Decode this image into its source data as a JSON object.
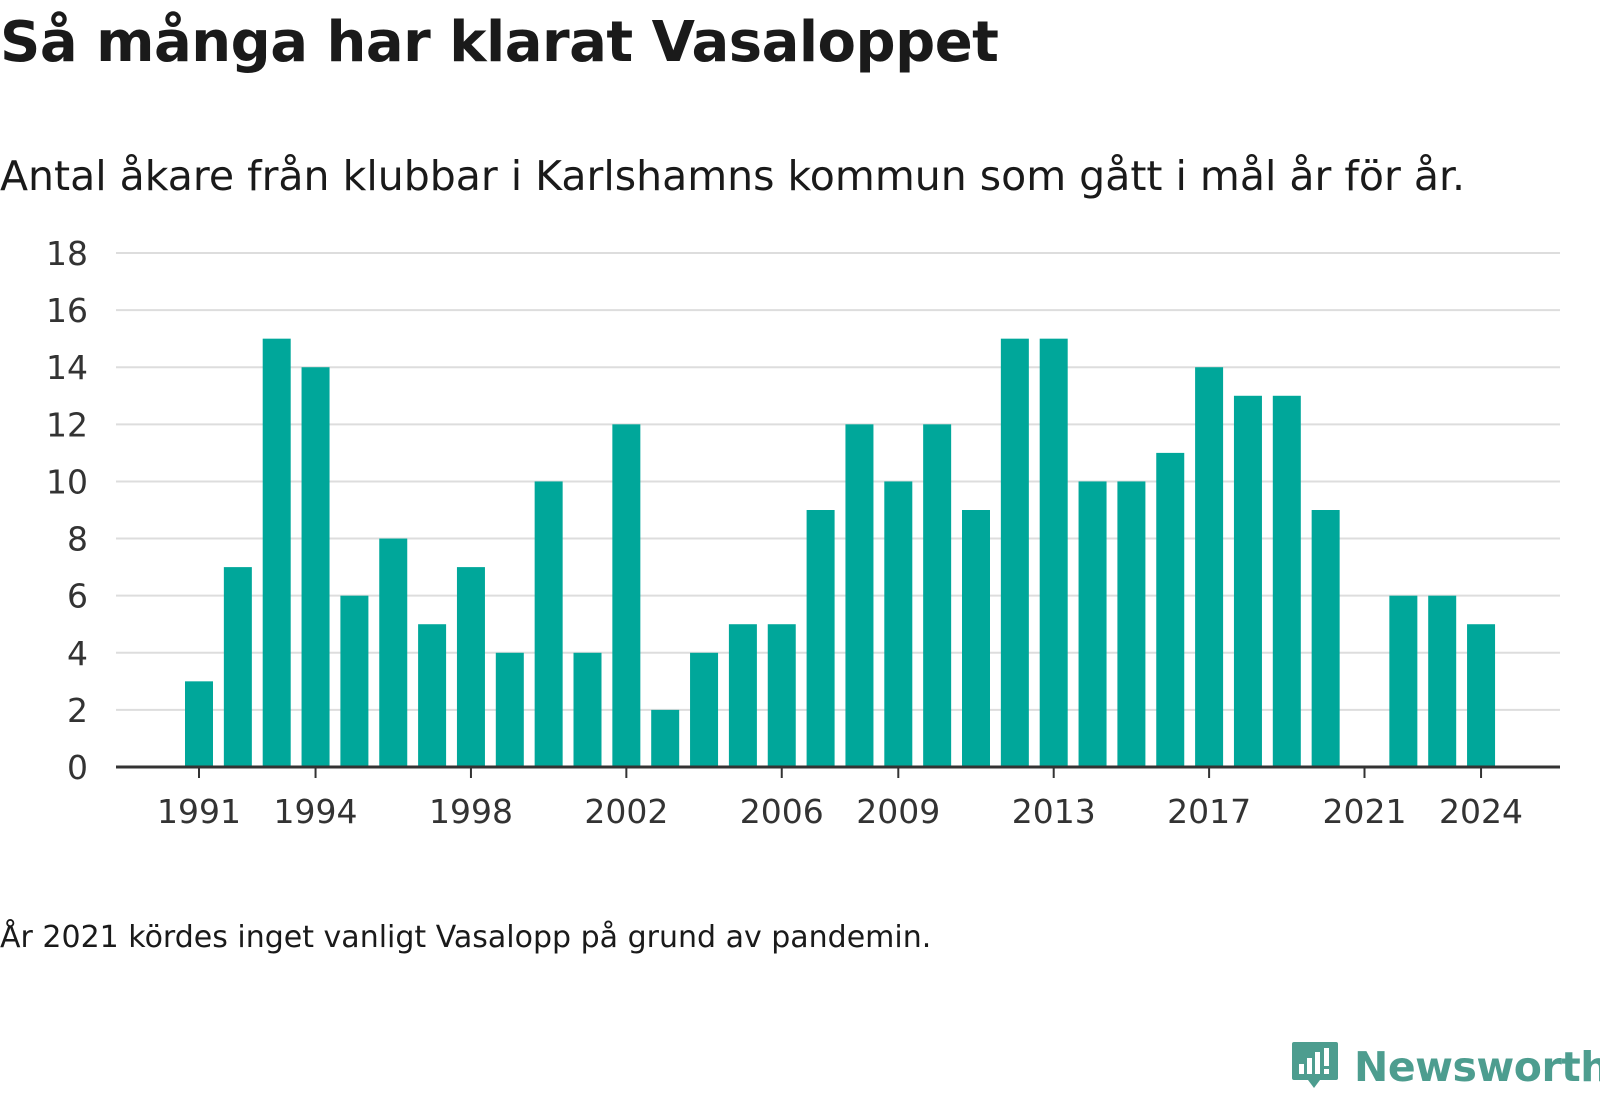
{
  "title": "Så många har klarat Vasaloppet",
  "subtitle": "Antal åkare från klubbar i Karlshamns kommun som gått i mål år för år.",
  "note": "År 2021 kördes inget vanligt Vasalopp på grund av pandemin.",
  "logo": {
    "text": "Newsworthy",
    "icon": "bar-chart-bubble-icon",
    "color": "#4d9d8f"
  },
  "colors": {
    "bar": "#00a79a",
    "grid": "#dddddd",
    "axis": "#333333"
  },
  "chart_data": {
    "type": "bar",
    "title": "Så många har klarat Vasaloppet",
    "subtitle": "Antal åkare från klubbar i Karlshamns kommun som gått i mål år för år.",
    "xlabel": "",
    "ylabel": "",
    "ylim": [
      0,
      18
    ],
    "yticks": [
      0,
      2,
      4,
      6,
      8,
      10,
      12,
      14,
      16,
      18
    ],
    "xticks": [
      1991,
      1994,
      1998,
      2002,
      2006,
      2009,
      2013,
      2017,
      2021,
      2024
    ],
    "grid": true,
    "categories": [
      1991,
      1992,
      1993,
      1994,
      1995,
      1996,
      1997,
      1998,
      1999,
      2000,
      2001,
      2002,
      2003,
      2004,
      2005,
      2006,
      2007,
      2008,
      2009,
      2010,
      2011,
      2012,
      2013,
      2014,
      2015,
      2016,
      2017,
      2018,
      2019,
      2020,
      2021,
      2022,
      2023,
      2024
    ],
    "values": [
      3,
      7,
      15,
      14,
      6,
      8,
      5,
      7,
      4,
      10,
      4,
      12,
      2,
      4,
      5,
      5,
      9,
      12,
      10,
      12,
      9,
      15,
      15,
      10,
      10,
      11,
      14,
      13,
      13,
      9,
      null,
      6,
      6,
      5
    ]
  }
}
